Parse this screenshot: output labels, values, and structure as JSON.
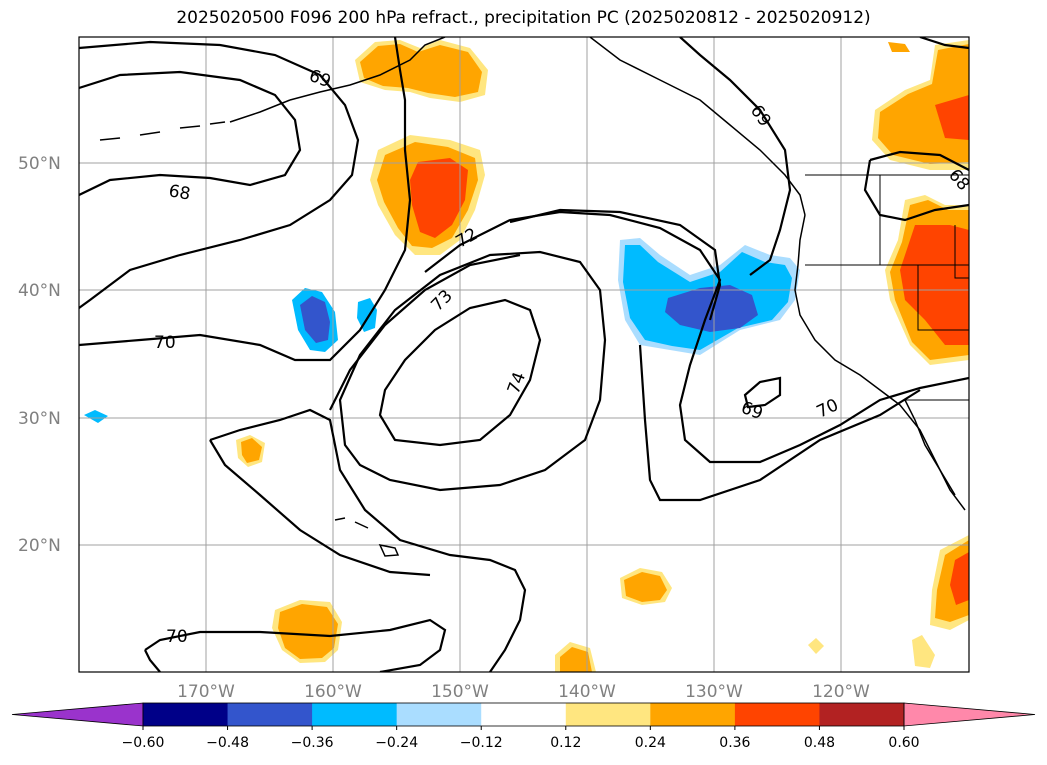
{
  "title": "2025020500 F096 200 hPa refract., precipitation PC (2025020812 - 2025020912)",
  "map": {
    "lat_labels": [
      "50°N",
      "40°N",
      "30°N",
      "20°N"
    ],
    "lon_labels": [
      "170°W",
      "160°W",
      "150°W",
      "140°W",
      "130°W",
      "120°W"
    ],
    "contour_labels": [
      "69",
      "68",
      "72",
      "73",
      "70",
      "74",
      "69",
      "70",
      "69",
      "68",
      "70"
    ]
  },
  "colorbar": {
    "ticks": [
      "−0.60",
      "−0.48",
      "−0.36",
      "−0.24",
      "−0.12",
      "0.12",
      "0.24",
      "0.36",
      "0.48",
      "0.60"
    ],
    "colors": [
      "#9a33cc",
      "#000088",
      "#3355cc",
      "#00bbff",
      "#aaddff",
      "#ffffff",
      "#ffe680",
      "#ffa500",
      "#ff4400",
      "#b22222",
      "#ff88aa"
    ],
    "extend_low_color": "#9a33cc",
    "extend_high_color": "#ff88aa"
  }
}
